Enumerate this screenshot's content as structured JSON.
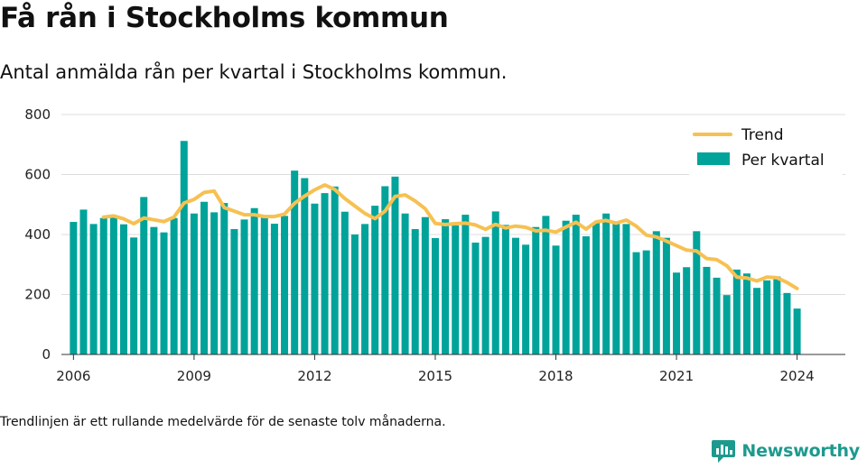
{
  "title": "Få rån i Stockholms kommun",
  "subtitle": "Antal anmälda rån per kvartal i Stockholms kommun.",
  "footnote": "Trendlinjen är ett rullande medelvärde för de senaste tolv månaderna.",
  "brand": "Newsworthy",
  "colors": {
    "bar": "#00a39a",
    "trend": "#f6c152",
    "grid": "#dddddd",
    "brand": "#1d9a8e"
  },
  "chart_data": {
    "type": "bar",
    "y_range": [
      0,
      800
    ],
    "y_ticks": [
      0,
      200,
      400,
      600,
      800
    ],
    "x_range": [
      2005.7,
      2025.2
    ],
    "x_ticks": [
      2006,
      2009,
      2012,
      2015,
      2018,
      2021,
      2024
    ],
    "grid": "horizontal",
    "legend_position": "top-right",
    "legend": {
      "trend": "Trend",
      "bars": "Per kvartal"
    },
    "series": [
      {
        "name": "Per kvartal",
        "kind": "bar",
        "values": [
          {
            "x": 2006.0,
            "y": 442
          },
          {
            "x": 2006.25,
            "y": 483
          },
          {
            "x": 2006.5,
            "y": 435
          },
          {
            "x": 2006.75,
            "y": 455
          },
          {
            "x": 2007.0,
            "y": 456
          },
          {
            "x": 2007.25,
            "y": 434
          },
          {
            "x": 2007.5,
            "y": 390
          },
          {
            "x": 2007.75,
            "y": 525
          },
          {
            "x": 2008.0,
            "y": 425
          },
          {
            "x": 2008.25,
            "y": 407
          },
          {
            "x": 2008.5,
            "y": 455
          },
          {
            "x": 2008.75,
            "y": 712
          },
          {
            "x": 2009.0,
            "y": 470
          },
          {
            "x": 2009.25,
            "y": 509
          },
          {
            "x": 2009.5,
            "y": 474
          },
          {
            "x": 2009.75,
            "y": 505
          },
          {
            "x": 2010.0,
            "y": 418
          },
          {
            "x": 2010.25,
            "y": 450
          },
          {
            "x": 2010.5,
            "y": 488
          },
          {
            "x": 2010.75,
            "y": 457
          },
          {
            "x": 2011.0,
            "y": 436
          },
          {
            "x": 2011.25,
            "y": 462
          },
          {
            "x": 2011.5,
            "y": 613
          },
          {
            "x": 2011.75,
            "y": 588
          },
          {
            "x": 2012.0,
            "y": 503
          },
          {
            "x": 2012.25,
            "y": 538
          },
          {
            "x": 2012.5,
            "y": 560
          },
          {
            "x": 2012.75,
            "y": 476
          },
          {
            "x": 2013.0,
            "y": 400
          },
          {
            "x": 2013.25,
            "y": 435
          },
          {
            "x": 2013.5,
            "y": 496
          },
          {
            "x": 2013.75,
            "y": 561
          },
          {
            "x": 2014.0,
            "y": 593
          },
          {
            "x": 2014.25,
            "y": 470
          },
          {
            "x": 2014.5,
            "y": 418
          },
          {
            "x": 2014.75,
            "y": 458
          },
          {
            "x": 2015.0,
            "y": 388
          },
          {
            "x": 2015.25,
            "y": 451
          },
          {
            "x": 2015.5,
            "y": 430
          },
          {
            "x": 2015.75,
            "y": 466
          },
          {
            "x": 2016.0,
            "y": 373
          },
          {
            "x": 2016.25,
            "y": 392
          },
          {
            "x": 2016.5,
            "y": 477
          },
          {
            "x": 2016.75,
            "y": 432
          },
          {
            "x": 2017.0,
            "y": 389
          },
          {
            "x": 2017.25,
            "y": 366
          },
          {
            "x": 2017.5,
            "y": 425
          },
          {
            "x": 2017.75,
            "y": 462
          },
          {
            "x": 2018.0,
            "y": 363
          },
          {
            "x": 2018.25,
            "y": 446
          },
          {
            "x": 2018.5,
            "y": 466
          },
          {
            "x": 2018.75,
            "y": 394
          },
          {
            "x": 2019.0,
            "y": 438
          },
          {
            "x": 2019.25,
            "y": 470
          },
          {
            "x": 2019.5,
            "y": 440
          },
          {
            "x": 2019.75,
            "y": 435
          },
          {
            "x": 2020.0,
            "y": 341
          },
          {
            "x": 2020.25,
            "y": 347
          },
          {
            "x": 2020.5,
            "y": 411
          },
          {
            "x": 2020.75,
            "y": 389
          },
          {
            "x": 2021.0,
            "y": 273
          },
          {
            "x": 2021.25,
            "y": 291
          },
          {
            "x": 2021.5,
            "y": 411
          },
          {
            "x": 2021.75,
            "y": 292
          },
          {
            "x": 2022.0,
            "y": 256
          },
          {
            "x": 2022.25,
            "y": 198
          },
          {
            "x": 2022.5,
            "y": 283
          },
          {
            "x": 2022.75,
            "y": 270
          },
          {
            "x": 2023.0,
            "y": 222
          },
          {
            "x": 2023.25,
            "y": 247
          },
          {
            "x": 2023.5,
            "y": 260
          },
          {
            "x": 2023.75,
            "y": 205
          },
          {
            "x": 2024.0,
            "y": 153
          }
        ]
      },
      {
        "name": "Trend",
        "kind": "line",
        "values": [
          {
            "x": 2006.75,
            "y": 458
          },
          {
            "x": 2007.0,
            "y": 462
          },
          {
            "x": 2007.25,
            "y": 452
          },
          {
            "x": 2007.5,
            "y": 436
          },
          {
            "x": 2007.75,
            "y": 455
          },
          {
            "x": 2008.0,
            "y": 449
          },
          {
            "x": 2008.25,
            "y": 443
          },
          {
            "x": 2008.5,
            "y": 458
          },
          {
            "x": 2008.75,
            "y": 505
          },
          {
            "x": 2009.0,
            "y": 517
          },
          {
            "x": 2009.25,
            "y": 540
          },
          {
            "x": 2009.5,
            "y": 545
          },
          {
            "x": 2009.75,
            "y": 490
          },
          {
            "x": 2010.0,
            "y": 478
          },
          {
            "x": 2010.25,
            "y": 466
          },
          {
            "x": 2010.5,
            "y": 466
          },
          {
            "x": 2010.75,
            "y": 460
          },
          {
            "x": 2011.0,
            "y": 460
          },
          {
            "x": 2011.25,
            "y": 468
          },
          {
            "x": 2011.5,
            "y": 504
          },
          {
            "x": 2011.75,
            "y": 528
          },
          {
            "x": 2012.0,
            "y": 549
          },
          {
            "x": 2012.25,
            "y": 565
          },
          {
            "x": 2012.5,
            "y": 550
          },
          {
            "x": 2012.75,
            "y": 520
          },
          {
            "x": 2013.0,
            "y": 495
          },
          {
            "x": 2013.25,
            "y": 470
          },
          {
            "x": 2013.5,
            "y": 453
          },
          {
            "x": 2013.75,
            "y": 478
          },
          {
            "x": 2014.0,
            "y": 527
          },
          {
            "x": 2014.25,
            "y": 532
          },
          {
            "x": 2014.5,
            "y": 512
          },
          {
            "x": 2014.75,
            "y": 486
          },
          {
            "x": 2015.0,
            "y": 437
          },
          {
            "x": 2015.25,
            "y": 433
          },
          {
            "x": 2015.5,
            "y": 436
          },
          {
            "x": 2015.75,
            "y": 438
          },
          {
            "x": 2016.0,
            "y": 432
          },
          {
            "x": 2016.25,
            "y": 417
          },
          {
            "x": 2016.5,
            "y": 434
          },
          {
            "x": 2016.75,
            "y": 422
          },
          {
            "x": 2017.0,
            "y": 428
          },
          {
            "x": 2017.25,
            "y": 424
          },
          {
            "x": 2017.5,
            "y": 412
          },
          {
            "x": 2017.75,
            "y": 414
          },
          {
            "x": 2018.0,
            "y": 408
          },
          {
            "x": 2018.25,
            "y": 425
          },
          {
            "x": 2018.5,
            "y": 441
          },
          {
            "x": 2018.75,
            "y": 418
          },
          {
            "x": 2019.0,
            "y": 442
          },
          {
            "x": 2019.25,
            "y": 447
          },
          {
            "x": 2019.5,
            "y": 438
          },
          {
            "x": 2019.75,
            "y": 448
          },
          {
            "x": 2020.0,
            "y": 428
          },
          {
            "x": 2020.25,
            "y": 398
          },
          {
            "x": 2020.5,
            "y": 392
          },
          {
            "x": 2020.75,
            "y": 378
          },
          {
            "x": 2021.0,
            "y": 363
          },
          {
            "x": 2021.25,
            "y": 348
          },
          {
            "x": 2021.5,
            "y": 345
          },
          {
            "x": 2021.75,
            "y": 320
          },
          {
            "x": 2022.0,
            "y": 316
          },
          {
            "x": 2022.25,
            "y": 296
          },
          {
            "x": 2022.5,
            "y": 258
          },
          {
            "x": 2022.75,
            "y": 255
          },
          {
            "x": 2023.0,
            "y": 245
          },
          {
            "x": 2023.25,
            "y": 258
          },
          {
            "x": 2023.5,
            "y": 256
          },
          {
            "x": 2023.75,
            "y": 240
          },
          {
            "x": 2024.0,
            "y": 220
          }
        ]
      }
    ]
  }
}
